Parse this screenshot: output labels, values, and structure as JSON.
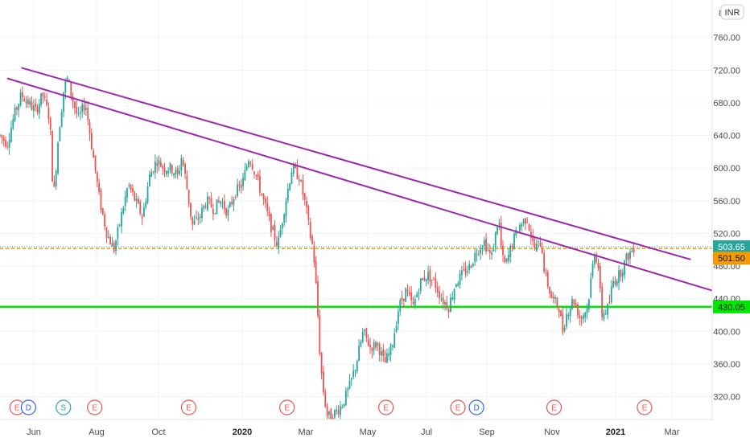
{
  "currency_badge": "INR",
  "scale_partial": "8",
  "colors": {
    "up": "#26a69a",
    "down": "#ef5350",
    "trendline": "#9c27b0",
    "support": "#00e600",
    "orange": "#f59a00",
    "dividend": "#2962ff",
    "split": "#26a69a",
    "earnings": "#ef5350"
  },
  "chart_data": {
    "type": "candlestick",
    "x_ticks": [
      "Jun",
      "Aug",
      "Oct",
      "2020",
      "Mar",
      "May",
      "Jul",
      "Sep",
      "Nov",
      "2021",
      "Mar"
    ],
    "y_ticks": [
      "320.00",
      "360.00",
      "400.00",
      "440.00",
      "480.00",
      "520.00",
      "560.00",
      "600.00",
      "640.00",
      "680.00",
      "720.00",
      "760.00"
    ],
    "ylim": [
      292,
      806
    ],
    "price_labels": [
      {
        "text": "503.65",
        "value": 503.65,
        "color": "#26a69a"
      },
      {
        "text": "501.50",
        "value": 501.5,
        "color": "#f59a00"
      },
      {
        "text": "430.05",
        "value": 430.05,
        "color": "#00e600"
      }
    ],
    "horizontal_lines": [
      {
        "value": 503.65,
        "style": "dotted",
        "color": "#26a69a"
      },
      {
        "value": 501.5,
        "style": "dashed",
        "color": "#f59a00"
      },
      {
        "value": 430.05,
        "style": "solid",
        "color": "#00e600"
      }
    ],
    "trendlines": [
      {
        "from": {
          "t": 0.03,
          "v": 723
        },
        "to": {
          "t": 0.97,
          "v": 488
        }
      },
      {
        "from": {
          "t": 0.01,
          "v": 710
        },
        "to": {
          "t": 1.0,
          "v": 450
        }
      }
    ],
    "event_markers": [
      {
        "label": "E",
        "t": 0.024,
        "kind": "earnings"
      },
      {
        "label": "D",
        "t": 0.04,
        "kind": "dividend"
      },
      {
        "label": "S",
        "t": 0.089,
        "kind": "split"
      },
      {
        "label": "E",
        "t": 0.133,
        "kind": "earnings"
      },
      {
        "label": "E",
        "t": 0.265,
        "kind": "earnings"
      },
      {
        "label": "E",
        "t": 0.403,
        "kind": "earnings"
      },
      {
        "label": "E",
        "t": 0.542,
        "kind": "earnings"
      },
      {
        "label": "E",
        "t": 0.643,
        "kind": "earnings"
      },
      {
        "label": "D",
        "t": 0.669,
        "kind": "dividend"
      },
      {
        "label": "E",
        "t": 0.778,
        "kind": "earnings"
      },
      {
        "label": "E",
        "t": 0.905,
        "kind": "earnings"
      }
    ],
    "price_path": [
      [
        0.0,
        640
      ],
      [
        0.01,
        630
      ],
      [
        0.02,
        665
      ],
      [
        0.03,
        690
      ],
      [
        0.04,
        680
      ],
      [
        0.05,
        670
      ],
      [
        0.06,
        690
      ],
      [
        0.07,
        660
      ],
      [
        0.075,
        560
      ],
      [
        0.082,
        640
      ],
      [
        0.09,
        700
      ],
      [
        0.095,
        710
      ],
      [
        0.1,
        690
      ],
      [
        0.11,
        660
      ],
      [
        0.12,
        680
      ],
      [
        0.13,
        620
      ],
      [
        0.14,
        560
      ],
      [
        0.15,
        520
      ],
      [
        0.16,
        500
      ],
      [
        0.17,
        540
      ],
      [
        0.18,
        580
      ],
      [
        0.19,
        560
      ],
      [
        0.2,
        540
      ],
      [
        0.21,
        590
      ],
      [
        0.22,
        610
      ],
      [
        0.23,
        600
      ],
      [
        0.24,
        600
      ],
      [
        0.25,
        590
      ],
      [
        0.255,
        615
      ],
      [
        0.26,
        590
      ],
      [
        0.27,
        530
      ],
      [
        0.28,
        540
      ],
      [
        0.29,
        560
      ],
      [
        0.3,
        550
      ],
      [
        0.31,
        560
      ],
      [
        0.32,
        545
      ],
      [
        0.33,
        570
      ],
      [
        0.34,
        580
      ],
      [
        0.35,
        615
      ],
      [
        0.36,
        590
      ],
      [
        0.37,
        560
      ],
      [
        0.38,
        530
      ],
      [
        0.39,
        505
      ],
      [
        0.4,
        555
      ],
      [
        0.41,
        600
      ],
      [
        0.42,
        590
      ],
      [
        0.43,
        550
      ],
      [
        0.435,
        520
      ],
      [
        0.44,
        500
      ],
      [
        0.445,
        440
      ],
      [
        0.45,
        360
      ],
      [
        0.455,
        320
      ],
      [
        0.46,
        295
      ],
      [
        0.47,
        300
      ],
      [
        0.48,
        310
      ],
      [
        0.49,
        330
      ],
      [
        0.5,
        360
      ],
      [
        0.51,
        400
      ],
      [
        0.52,
        380
      ],
      [
        0.53,
        385
      ],
      [
        0.54,
        360
      ],
      [
        0.55,
        380
      ],
      [
        0.56,
        430
      ],
      [
        0.57,
        450
      ],
      [
        0.58,
        430
      ],
      [
        0.59,
        460
      ],
      [
        0.6,
        470
      ],
      [
        0.61,
        460
      ],
      [
        0.62,
        440
      ],
      [
        0.63,
        430
      ],
      [
        0.64,
        460
      ],
      [
        0.65,
        470
      ],
      [
        0.66,
        480
      ],
      [
        0.67,
        500
      ],
      [
        0.68,
        510
      ],
      [
        0.69,
        490
      ],
      [
        0.7,
        540
      ],
      [
        0.705,
        490
      ],
      [
        0.71,
        480
      ],
      [
        0.72,
        510
      ],
      [
        0.73,
        530
      ],
      [
        0.74,
        540
      ],
      [
        0.75,
        500
      ],
      [
        0.76,
        510
      ],
      [
        0.765,
        470
      ],
      [
        0.775,
        440
      ],
      [
        0.785,
        430
      ],
      [
        0.79,
        400
      ],
      [
        0.795,
        420
      ],
      [
        0.805,
        440
      ],
      [
        0.815,
        415
      ],
      [
        0.825,
        430
      ],
      [
        0.835,
        500
      ],
      [
        0.84,
        480
      ],
      [
        0.845,
        420
      ],
      [
        0.855,
        430
      ],
      [
        0.86,
        460
      ],
      [
        0.87,
        470
      ],
      [
        0.88,
        490
      ],
      [
        0.89,
        503
      ]
    ]
  }
}
